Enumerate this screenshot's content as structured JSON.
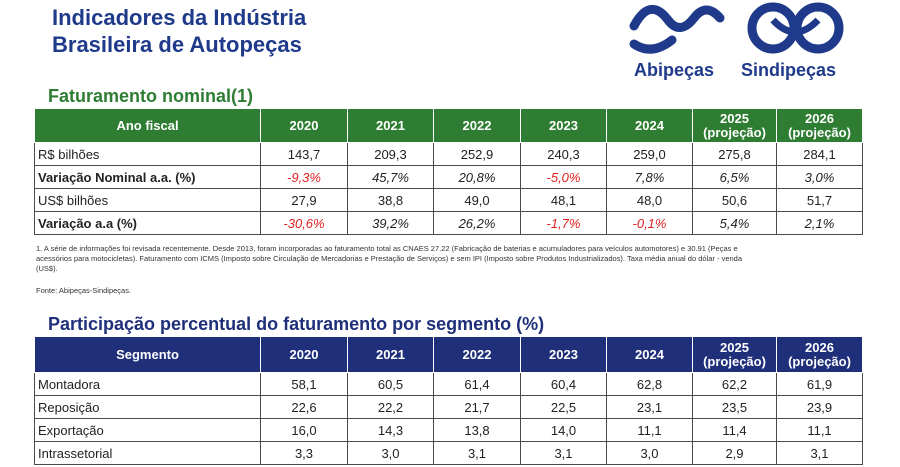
{
  "header": {
    "title_line1": "Indicadores da Indústria",
    "title_line2": "Brasileira de Autopeças",
    "logo_left": "Abipeças",
    "logo_right": "Sindipeças",
    "brand_color": "#1f3a8a"
  },
  "table1": {
    "title": "Faturamento nominal(1)",
    "header_color": "#2e7d32",
    "corner": "Ano fiscal",
    "years": [
      "2020",
      "2021",
      "2022",
      "2023",
      "2024"
    ],
    "proj_years": [
      {
        "year": "2025",
        "note": "(projeção)"
      },
      {
        "year": "2026",
        "note": "(projeção)"
      }
    ],
    "rows": [
      {
        "label": "R$ bilhões",
        "values": [
          "143,7",
          "209,3",
          "252,9",
          "240,3",
          "259,0",
          "275,8",
          "284,1"
        ]
      },
      {
        "label": "Variação Nominal a.a. (%)",
        "values": [
          "-9,3%",
          "45,7%",
          "20,8%",
          "-5,0%",
          "7,8%",
          "6,5%",
          "3,0%"
        ]
      },
      {
        "label": "US$ bilhões",
        "values": [
          "27,9",
          "38,8",
          "49,0",
          "48,1",
          "48,0",
          "50,6",
          "51,7"
        ]
      },
      {
        "label": "Variação a.a (%)",
        "values": [
          "-30,6%",
          "39,2%",
          "26,2%",
          "-1,7%",
          "-0,1%",
          "5,4%",
          "2,1%"
        ]
      }
    ],
    "footnote": "1. A série de informações foi revisada recentemente. Desde 2013, foram incorporadas ao faturamento total as CNAES 27.22 (Fabricação de baterias e acumuladores para veículos automotores) e 30.91 (Peças e acessórios para motocicletas). Faturamento com ICMS (Imposto sobre Circulação de Mercadorias e Prestação de Serviços) e sem IPI (Imposto sobre Produtos Industrializados). Taxa média anual do dólar - venda (US$).",
    "source": "Fonte: Abipeças-Sindipeças."
  },
  "table2": {
    "title": "Participação percentual do faturamento por segmento (%)",
    "header_color": "#1f2f7a",
    "corner": "Segmento",
    "years": [
      "2020",
      "2021",
      "2022",
      "2023",
      "2024"
    ],
    "proj_years": [
      {
        "year": "2025",
        "note": "(projeção)"
      },
      {
        "year": "2026",
        "note": "(projeção)"
      }
    ],
    "rows": [
      {
        "label": "Montadora",
        "values": [
          "58,1",
          "60,5",
          "61,4",
          "60,4",
          "62,8",
          "62,2",
          "61,9"
        ]
      },
      {
        "label": "Reposição",
        "values": [
          "22,6",
          "22,2",
          "21,7",
          "22,5",
          "23,1",
          "23,5",
          "23,9"
        ]
      },
      {
        "label": "Exportação",
        "values": [
          "16,0",
          "14,3",
          "13,8",
          "14,0",
          "11,1",
          "11,4",
          "11,1"
        ]
      },
      {
        "label": "Intrassetorial",
        "values": [
          "3,3",
          "3,0",
          "3,1",
          "3,1",
          "3,0",
          "2,9",
          "3,1"
        ]
      }
    ]
  }
}
